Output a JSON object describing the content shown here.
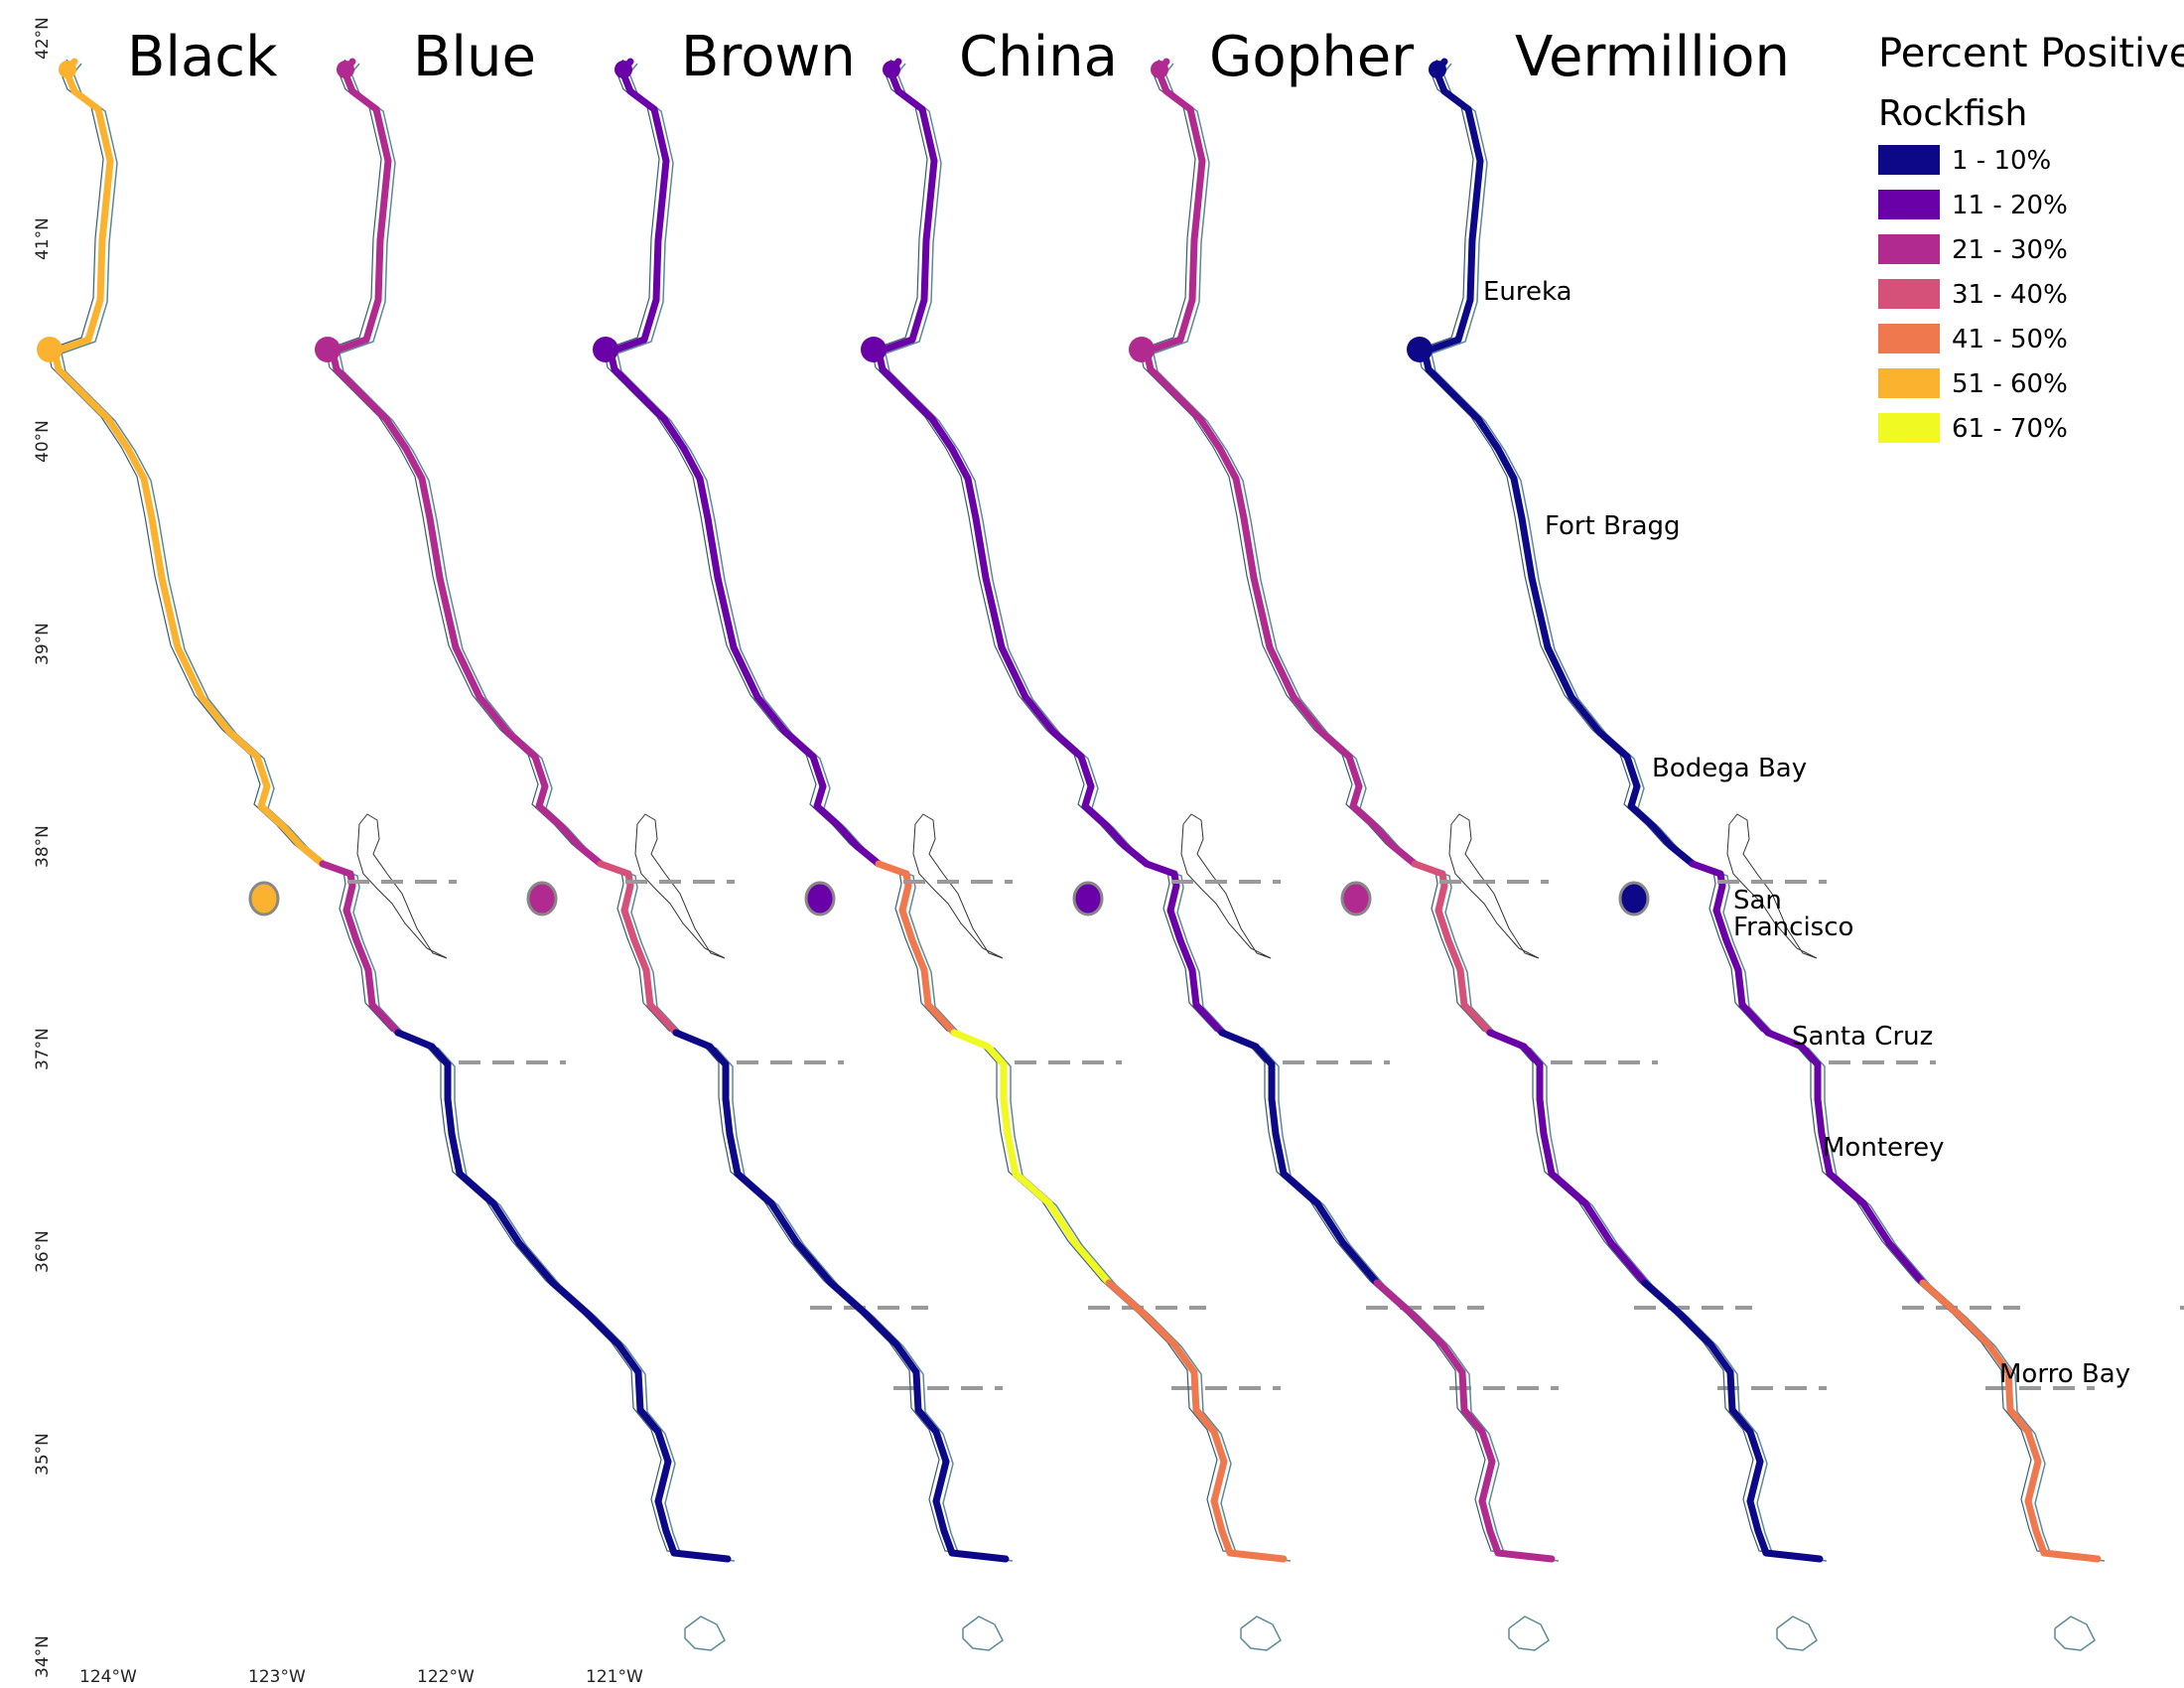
{
  "species": [
    {
      "name": "Black",
      "offset": 0,
      "regions": [
        6,
        6,
        3,
        1,
        1,
        1
      ]
    },
    {
      "name": "Blue",
      "offset": 280,
      "regions": [
        3,
        3,
        4,
        1,
        1,
        1
      ]
    },
    {
      "name": "Brown",
      "offset": 560,
      "regions": [
        2,
        2,
        5,
        7,
        5,
        5
      ]
    },
    {
      "name": "China",
      "offset": 830,
      "regions": [
        2,
        2,
        2,
        1,
        3,
        3
      ]
    },
    {
      "name": "Gopher",
      "offset": 1100,
      "regions": [
        3,
        3,
        4,
        2,
        1,
        1
      ]
    },
    {
      "name": "Vermillion",
      "offset": 1380,
      "regions": [
        1,
        1,
        2,
        2,
        5,
        5
      ]
    }
  ],
  "legend": {
    "title": "Percent Positive",
    "subtitle": "Rockfish",
    "classes": [
      {
        "label": "1 - 10%",
        "color": "#0d0887"
      },
      {
        "label": "11 - 20%",
        "color": "#6a00a8"
      },
      {
        "label": "21 - 30%",
        "color": "#b12a90"
      },
      {
        "label": "31 - 40%",
        "color": "#d5517a"
      },
      {
        "label": "41 - 50%",
        "color": "#f0784f"
      },
      {
        "label": "51 - 60%",
        "color": "#fbb32f"
      },
      {
        "label": "61 - 70%",
        "color": "#f0f921"
      }
    ]
  },
  "cities": [
    "Eureka",
    "Fort Bragg",
    "Bodega Bay",
    "San",
    "Francisco",
    "Santa Cruz",
    "Monterey",
    "Morro Bay"
  ],
  "latitude_ticks": [
    "42°N",
    "41°N",
    "40°N",
    "39°N",
    "38°N",
    "37°N",
    "36°N",
    "35°N",
    "34°N"
  ],
  "longitude_ticks": [
    "124°W",
    "123°W",
    "122°W",
    "121°W"
  ],
  "colors": {
    "coastline": "#3a5f6e",
    "outline": "#5b8a96",
    "boundary": "#999999"
  }
}
